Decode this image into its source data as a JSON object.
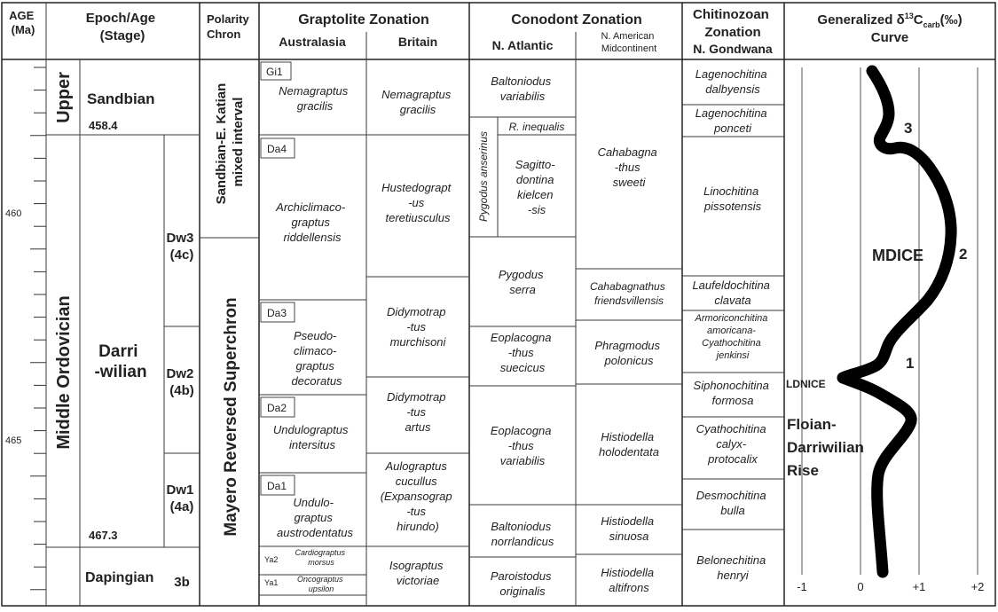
{
  "headers": {
    "age": [
      "AGE",
      "(Ma)"
    ],
    "epoch": [
      "Epoch/Age",
      "(Stage)"
    ],
    "polarity": [
      "Polarity",
      "Chron"
    ],
    "graptolite": "Graptolite Zonation",
    "australasia": "Australasia",
    "britain": "Britain",
    "conodont": "Conodont Zonation",
    "n_atlantic": "N. Atlantic",
    "n_american": [
      "N. American",
      "Midcontinent"
    ],
    "chitinozoan": [
      "Chitinozoan",
      "Zonation"
    ],
    "n_gondwana": "N. Gondwana",
    "curve_pre": "Generalized δ",
    "curve_sup": "13",
    "curve_mid": "C",
    "curve_sub": "carb",
    "curve_post": "(‰)",
    "curve_line2": "Curve"
  },
  "age_labels": [
    "460",
    "465"
  ],
  "epoch": {
    "upper": "Upper",
    "middle": "Middle Ordovician"
  },
  "stages": {
    "sandbian": "Sandbian",
    "sandbian_base": "458.4",
    "darri": [
      "Darri",
      "-wilian"
    ],
    "darri_base": "467.3",
    "dapingian": "Dapingian"
  },
  "dw": {
    "dw3": [
      "Dw3",
      "(4c)"
    ],
    "dw2": [
      "Dw2",
      "(4b)"
    ],
    "dw1": [
      "Dw1",
      "(4a)"
    ],
    "b3": "3b"
  },
  "polarity": {
    "mixed": [
      "Sandbian-E. Katian",
      "mixed interval"
    ],
    "mayero": "Mayero Reversed Superchron"
  },
  "australasia": {
    "gi1": {
      "code": "Gi1",
      "name": [
        "Nemagraptus",
        "gracilis"
      ]
    },
    "da4": {
      "code": "Da4",
      "name": [
        "Archiclimaco-",
        "graptus",
        "riddellensis"
      ]
    },
    "da3": {
      "code": "Da3",
      "name": [
        "Pseudo-",
        "climaco-",
        "graptus",
        "decoratus"
      ]
    },
    "da2": {
      "code": "Da2",
      "name": [
        "Undulograptus",
        "intersitus"
      ]
    },
    "da1": {
      "code": "Da1",
      "name": [
        "Undulo-",
        "graptus",
        "austrodentatus"
      ]
    },
    "ya2": {
      "code": "Ya2",
      "name": [
        "Cardiograptus",
        "morsus"
      ]
    },
    "ya1": {
      "code": "Ya1",
      "name": [
        "Oncograptus",
        "upsilon"
      ]
    }
  },
  "britain": [
    [
      "Nemagraptus",
      "gracilis"
    ],
    [
      "Hustedograpt",
      "-us",
      "teretiusculus"
    ],
    [
      "Didymotrap",
      "-tus",
      "murchisoni"
    ],
    [
      "Didymotrap",
      "-tus",
      "artus"
    ],
    [
      "Aulograptus",
      "cucullus",
      "(Expansograp",
      "-tus",
      "hirundo)"
    ],
    [
      "Isograptus",
      "victoriae"
    ]
  ],
  "n_atlantic": {
    "baltoniodus_var": [
      "Baltoniodus",
      "variabilis"
    ],
    "pygodus_anserinus": "Pygodus anserinus",
    "r_inequalis": "R. inequalis",
    "sagitto": [
      "Sagitto-",
      "dontina",
      "kielcen",
      "-sis"
    ],
    "pygodus_serra": [
      "Pygodus",
      "serra"
    ],
    "eopla_suecicus": [
      "Eoplacogna",
      "-thus",
      "suecicus"
    ],
    "eopla_variabilis": [
      "Eoplacogna",
      "-thus",
      "variabilis"
    ],
    "baltoniodus_norr": [
      "Baltoniodus",
      "norrlandicus"
    ],
    "paroistodus": [
      "Paroistodus",
      "originalis"
    ]
  },
  "n_american": [
    [
      "Cahabagna",
      "-thus",
      "sweeti"
    ],
    [
      "Cahabagnathus",
      "friendsvillensis"
    ],
    [
      "Phragmodus",
      "polonicus"
    ],
    [
      "Histiodella",
      "holodentata"
    ],
    [
      "Histiodella",
      "sinuosa"
    ],
    [
      "Histiodella",
      "altifrons"
    ]
  ],
  "chitinozoan": [
    [
      "Lagenochitina",
      "dalbyensis"
    ],
    [
      "Lagenochitina",
      "ponceti"
    ],
    [
      "Linochitina",
      "pissotensis"
    ],
    [
      "Laufeldochitina",
      "clavata"
    ],
    [
      "Armoriconchitina",
      "amoricana-",
      "Cyathochitina",
      "jenkinsi"
    ],
    [
      "Siphonochitina",
      "formosa"
    ],
    [
      "Cyathochitina",
      "calyx-",
      "protocalix"
    ],
    [
      "Desmochitina",
      "bulla"
    ],
    [
      "Belonechitina",
      "henryi"
    ]
  ],
  "curve": {
    "x_ticks": [
      "-1",
      "0",
      "+1",
      "+2"
    ],
    "num1": "1",
    "num2": "2",
    "num3": "3",
    "mdice": "MDICE",
    "ldnice": "LDNICE",
    "floian": [
      "Floian-",
      "Darriwilian",
      "Rise"
    ],
    "colors": {
      "mdice": "#e8211d",
      "ldnice": "#1f6fb4",
      "floian": "#2ca84a",
      "curve": "#000000"
    }
  }
}
